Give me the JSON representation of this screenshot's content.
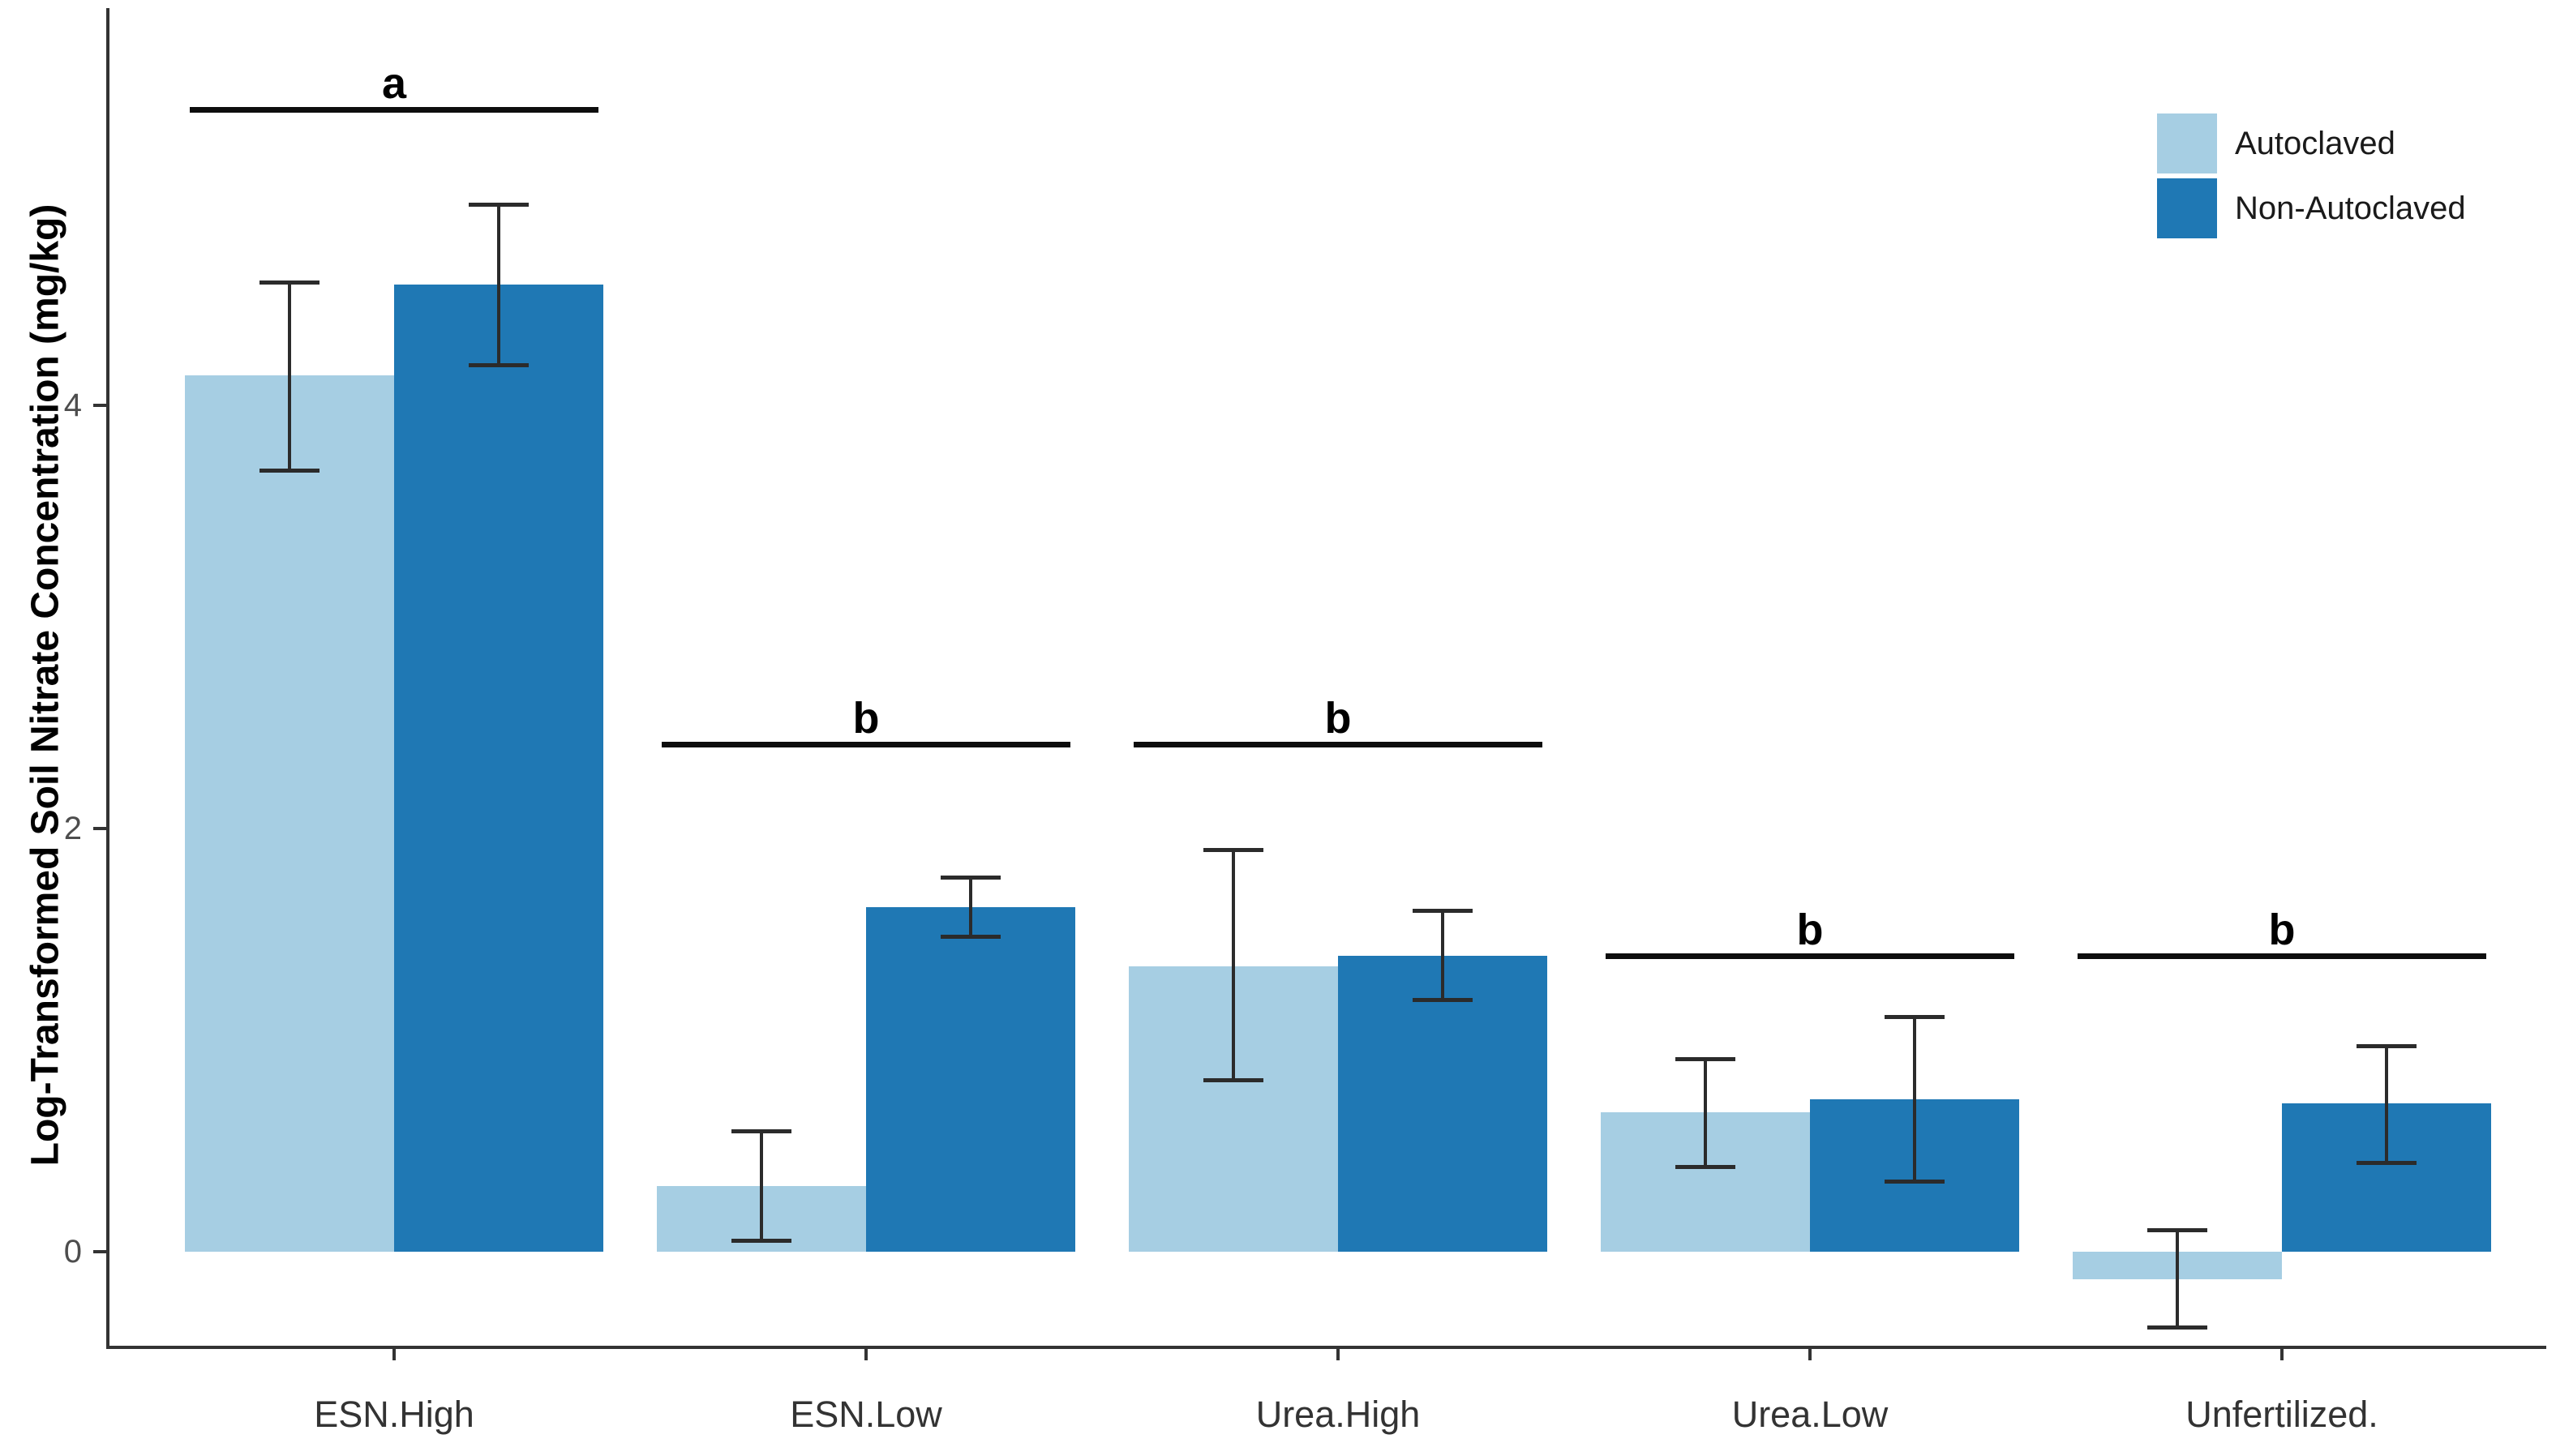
{
  "chart_data": {
    "type": "bar",
    "title": "",
    "xlabel": "",
    "ylabel": "Log-Transformed Soil Nitrate Concentration (mg/kg)",
    "categories": [
      "ESN.High",
      "ESN.Low",
      "Urea.High",
      "Urea.Low",
      "Unfertilized."
    ],
    "series": [
      {
        "name": "Autoclaved",
        "color": "#A6CEE3",
        "values": [
          4.14,
          0.31,
          1.35,
          0.66,
          -0.13
        ],
        "error_low": [
          3.69,
          0.05,
          0.81,
          0.4,
          -0.36
        ],
        "error_high": [
          4.58,
          0.57,
          1.9,
          0.91,
          0.1
        ]
      },
      {
        "name": "Non-Autoclaved",
        "color": "#1F78B4",
        "values": [
          4.57,
          1.63,
          1.4,
          0.72,
          0.7
        ],
        "error_low": [
          4.19,
          1.49,
          1.19,
          0.33,
          0.42
        ],
        "error_high": [
          4.95,
          1.77,
          1.61,
          1.11,
          0.97
        ]
      }
    ],
    "significance": [
      {
        "label": "a",
        "y": 5.4
      },
      {
        "label": "b",
        "y": 2.4
      },
      {
        "label": "b",
        "y": 2.4
      },
      {
        "label": "b",
        "y": 1.4
      },
      {
        "label": "b",
        "y": 1.4
      }
    ],
    "yticks": [
      0,
      2,
      4
    ],
    "ytick_labels": [
      "0",
      "2",
      "4"
    ],
    "ylim": [
      -0.44,
      5.88
    ],
    "grid": false,
    "legend_position": "top-right",
    "background": "#ffffff",
    "axis_color": "#333333",
    "error_bar_color": "#2b2b2b",
    "significance_line_color": "#0d0d0d"
  }
}
